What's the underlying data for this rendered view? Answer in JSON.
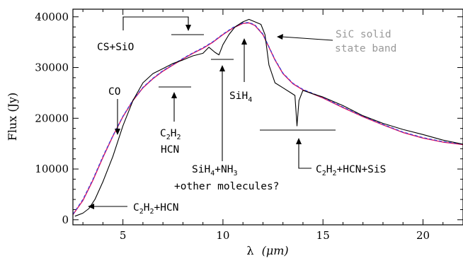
{
  "chart_data": {
    "type": "line",
    "xlabel_symbol": "λ",
    "xlabel_unit": "(μm)",
    "ylabel": "Flux (Jy)",
    "xlim": [
      2.5,
      22
    ],
    "ylim": [
      -1000,
      41500
    ],
    "x_ticks": [
      5,
      10,
      15,
      20
    ],
    "y_ticks": [
      0,
      10000,
      20000,
      30000,
      40000
    ],
    "grid": false,
    "series": [
      {
        "role": "observed spectrum",
        "color": "#000000",
        "x": [
          2.6,
          3.0,
          3.3,
          3.6,
          4.0,
          4.5,
          5.0,
          5.5,
          6.0,
          6.5,
          7.0,
          7.5,
          8.0,
          8.5,
          9.0,
          9.3,
          9.6,
          9.8,
          10.0,
          10.3,
          10.6,
          11.0,
          11.3,
          11.6,
          11.9,
          12.1,
          12.3,
          12.6,
          13.0,
          13.4,
          13.6,
          13.7,
          13.8,
          14.0,
          14.5,
          15.0,
          16.0,
          17.0,
          18.0,
          19.0,
          20.0,
          21.0,
          22.0
        ],
        "y": [
          700,
          1300,
          2200,
          4000,
          7500,
          12500,
          18500,
          23500,
          27000,
          28800,
          29800,
          30800,
          31500,
          32300,
          32800,
          34000,
          33000,
          32500,
          34500,
          36500,
          38000,
          39000,
          39500,
          39000,
          38500,
          36500,
          30500,
          27000,
          26000,
          25000,
          24500,
          18500,
          23500,
          25500,
          24800,
          24200,
          22500,
          20500,
          19000,
          17800,
          16800,
          15700,
          14900
        ]
      },
      {
        "role": "model (red)",
        "color": "#e0115f",
        "x": [
          2.5,
          3.0,
          3.5,
          4.0,
          4.5,
          5.0,
          5.5,
          6.0,
          6.5,
          7.0,
          7.5,
          8.0,
          8.5,
          9.0,
          9.5,
          10.0,
          10.5,
          11.0,
          11.3,
          11.6,
          12.0,
          12.3,
          12.6,
          13.0,
          13.5,
          14.0,
          15.0,
          16.0,
          17.0,
          18.0,
          19.0,
          20.0,
          21.0,
          22.0
        ],
        "y": [
          1000,
          3800,
          7800,
          12300,
          16500,
          20300,
          23500,
          26000,
          27800,
          29300,
          30500,
          31700,
          32800,
          33800,
          35000,
          36500,
          37800,
          38700,
          38800,
          38300,
          36500,
          34000,
          31500,
          28800,
          26800,
          25600,
          24000,
          22100,
          20300,
          18700,
          17200,
          16100,
          15300,
          14800
        ]
      },
      {
        "role": "model (blue dashed)",
        "color": "#3a46e0",
        "x": [
          2.5,
          3.0,
          3.5,
          4.0,
          4.5,
          5.0,
          5.5,
          6.0,
          6.5,
          7.0,
          7.5,
          8.0,
          8.5,
          9.0,
          9.5,
          10.0,
          10.5,
          11.0,
          11.3,
          11.6,
          12.0,
          12.3,
          12.6,
          13.0,
          13.5,
          14.0,
          15.0,
          16.0,
          17.0,
          18.0,
          19.0,
          20.0,
          21.0,
          22.0
        ],
        "y": [
          1100,
          4000,
          8000,
          12500,
          16600,
          20400,
          23600,
          26100,
          27900,
          29400,
          30600,
          31800,
          32900,
          33900,
          35100,
          36600,
          37900,
          38800,
          38900,
          38400,
          36600,
          34100,
          31600,
          28900,
          26900,
          25700,
          24100,
          22200,
          20400,
          18800,
          17300,
          16200,
          15400,
          14900
        ]
      }
    ],
    "annotations": {
      "cs_sio": "CS+SiO",
      "co": "CO",
      "c2h2_hcn_mid_1": "C2H2",
      "c2h2_hcn_mid_2": "HCN",
      "c2h2_hcn_low": "C2H2+HCN",
      "sih4": "SiH4",
      "sih4_nh3_1": "SiH4+NH3",
      "sih4_nh3_2": "+other molecules?",
      "sic_1": "SiC solid",
      "sic_2": "state band",
      "c2h2_hcn_sis": "C2H2+HCN+SiS"
    },
    "annotation_color_sic": "#999999"
  }
}
